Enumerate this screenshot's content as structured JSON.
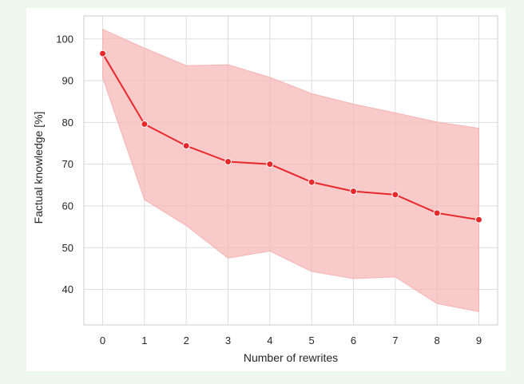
{
  "chart_data": {
    "type": "line",
    "xlabel": "Number of rewrites",
    "ylabel": "Factual knowledge [%]",
    "x": [
      0,
      1,
      2,
      3,
      4,
      5,
      6,
      7,
      8,
      9
    ],
    "xlim": [
      -0.45,
      9.45
    ],
    "ylim": [
      31.5,
      105.5
    ],
    "yticks": [
      40,
      50,
      60,
      70,
      80,
      90,
      100
    ],
    "grid": true,
    "legend": "none",
    "series": [
      {
        "values": [
          96.5,
          79.6,
          74.4,
          70.6,
          70.0,
          65.7,
          63.5,
          62.7,
          58.3,
          56.7
        ],
        "band_upper": [
          102.3,
          97.8,
          93.6,
          93.8,
          90.8,
          86.9,
          84.4,
          82.3,
          80.1,
          78.6
        ],
        "band_lower": [
          90.7,
          61.5,
          55.3,
          47.5,
          49.2,
          44.3,
          42.6,
          43.0,
          36.6,
          34.7
        ],
        "line_color": "#e8292b",
        "band_color": "#f7b3b3"
      }
    ]
  }
}
